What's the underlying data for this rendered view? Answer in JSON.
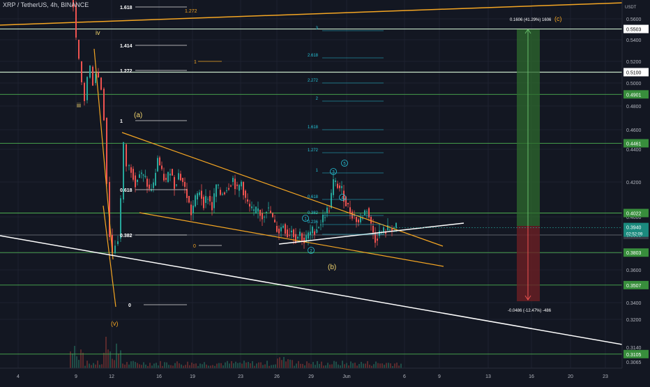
{
  "header": {
    "title": "XRP / TetherUS, 4h, BINANCE"
  },
  "chart_data": {
    "type": "candlestick",
    "x_ticks": [
      "4",
      "9",
      "12",
      "16",
      "19",
      "23",
      "26",
      "29",
      "Jun",
      "6",
      "9",
      "13",
      "16",
      "20",
      "23"
    ],
    "y_ticks": [
      "0.5600",
      "0.5400",
      "0.5200",
      "0.5000",
      "0.4800",
      "0.4600",
      "0.4400",
      "0.4200",
      "0.4000",
      "0.3800",
      "0.3600",
      "0.3400",
      "0.3200",
      "0.3140",
      "0.3065"
    ],
    "currency_label": "USDT",
    "price_now": {
      "value": "0.3940",
      "countdown": "02:52:09"
    },
    "horizontal_levels": [
      {
        "label": "0.5503",
        "value": 0.5503,
        "style": "dark"
      },
      {
        "label": "0.5100",
        "value": 0.51,
        "style": "dark"
      },
      {
        "label": "0.4901",
        "value": 0.4901,
        "style": "green"
      },
      {
        "label": "0.4461",
        "value": 0.4461,
        "style": "green"
      },
      {
        "label": "0.4022",
        "value": 0.4022,
        "style": "green"
      },
      {
        "label": "0.3900",
        "value": 0.39,
        "style": "gray"
      },
      {
        "label": "0.3803",
        "value": 0.3803,
        "style": "green"
      },
      {
        "label": "0.3507",
        "value": 0.3507,
        "style": "green"
      },
      {
        "label": "0.3105",
        "value": 0.3105,
        "style": "green"
      }
    ],
    "fib_left": [
      "1.618",
      "1.414",
      "1.272",
      "1",
      "0.618",
      "0.382",
      "0",
      "1.272",
      "1"
    ],
    "fib_right": [
      "3",
      "2.618",
      "2.272",
      "2",
      "1.618",
      "1.272",
      "1",
      "0.618",
      "0.382",
      "0.236",
      "0"
    ],
    "wave_labels": [
      "iv",
      "iii",
      "(v)",
      "(a)",
      "(b)",
      "(c)"
    ],
    "wave_circles": [
      "1",
      "2",
      "3",
      "4",
      "5"
    ],
    "projection": {
      "up_text": "0.1606 (41.29%) 1606",
      "down_text": "-0.0486 (-12.47%) -486",
      "target_label": "(c)"
    },
    "colors": {
      "bg": "#131722",
      "up": "#26a69a",
      "down": "#ef5350",
      "level": "#4caf50",
      "trend": "#f5a623",
      "fib": "#26c6da"
    }
  }
}
